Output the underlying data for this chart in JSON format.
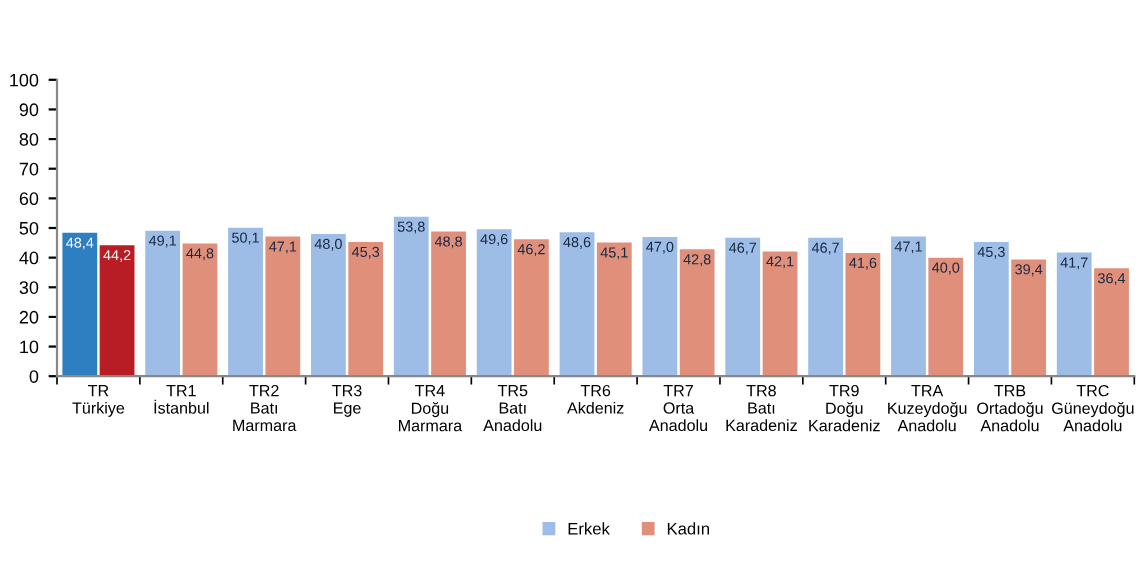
{
  "chart_data": {
    "type": "bar",
    "categories": [
      "TR\nTürkiye",
      "TR1\nİstanbul",
      "TR2\nBatı\nMarmara",
      "TR3\nEge",
      "TR4\nDoğu\nMarmara",
      "TR5\nBatı\nAnadolu",
      "TR6\nAkdeniz",
      "TR7\nOrta\nAnadolu",
      "TR8\nBatı\nKaradeniz",
      "TR9\nDoğu\nKaradeniz",
      "TRA\nKuzeydoğu\nAnadolu",
      "TRB\nOrtadoğu\nAnadolu",
      "TRC\nGüneydoğu\nAnadolu"
    ],
    "series": [
      {
        "name": "Erkek",
        "color": "#9dbde6",
        "colors": [
          "#2e7fc1",
          "#9dbde6",
          "#9dbde6",
          "#9dbde6",
          "#9dbde6",
          "#9dbde6",
          "#9dbde6",
          "#9dbde6",
          "#9dbde6",
          "#9dbde6",
          "#9dbde6",
          "#9dbde6",
          "#9dbde6"
        ],
        "values": [
          48.4,
          49.1,
          50.1,
          48.0,
          53.8,
          49.6,
          48.6,
          47.0,
          46.7,
          46.7,
          47.1,
          45.3,
          41.7
        ],
        "value_labels": [
          "48,4",
          "49,1",
          "50,1",
          "48,0",
          "53,8",
          "49,6",
          "48,6",
          "47,0",
          "46,7",
          "46,7",
          "47,1",
          "45,3",
          "41,7"
        ]
      },
      {
        "name": "Kadın",
        "color": "#e0907a",
        "colors": [
          "#b81c24",
          "#e0907a",
          "#e0907a",
          "#e0907a",
          "#e0907a",
          "#e0907a",
          "#e0907a",
          "#e0907a",
          "#e0907a",
          "#e0907a",
          "#e0907a",
          "#e0907a",
          "#e0907a"
        ],
        "values": [
          44.2,
          44.8,
          47.1,
          45.3,
          48.8,
          46.2,
          45.1,
          42.8,
          42.1,
          41.6,
          40.0,
          39.4,
          36.4
        ],
        "value_labels": [
          "44,2",
          "44,8",
          "47,1",
          "45,3",
          "48,8",
          "46,2",
          "45,1",
          "42,8",
          "42,1",
          "41,6",
          "40,0",
          "39,4",
          "36,4"
        ]
      }
    ],
    "ylim": [
      0,
      100
    ],
    "yticks": [
      0,
      10,
      20,
      30,
      40,
      50,
      60,
      70,
      80,
      90,
      100
    ],
    "grid": false,
    "legend": "bottom"
  }
}
